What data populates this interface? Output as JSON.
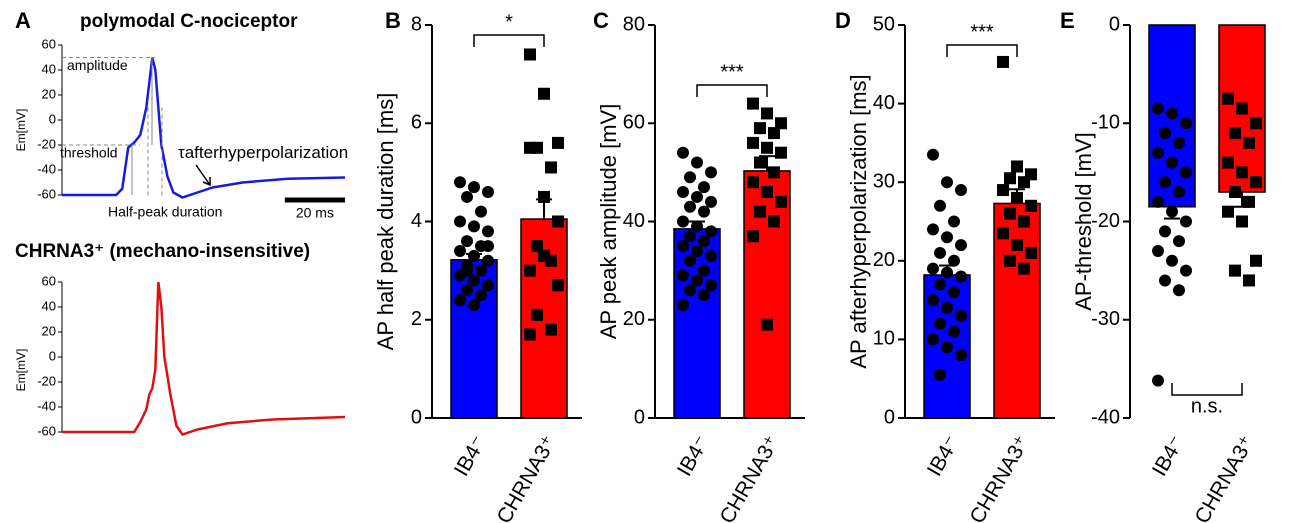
{
  "chart_data": [
    {
      "type": "line",
      "letter": "A",
      "title": "polymodal C-nociceptor",
      "ylabel": "Em[mV]",
      "xlim": [
        0,
        94
      ],
      "ylim": [
        -60,
        60
      ],
      "yticks": [
        -60,
        -40,
        -20,
        0,
        20,
        40,
        60
      ],
      "series": [
        {
          "name": "polymodal C-nociceptor",
          "color": "#1a1adc",
          "x": [
            0,
            18,
            20,
            22,
            24,
            26,
            28,
            30,
            31,
            32,
            33,
            35,
            37,
            40,
            45,
            50,
            60,
            75,
            94
          ],
          "values": [
            -60,
            -60,
            -55,
            -22,
            -18,
            -12,
            10,
            50,
            40,
            10,
            -20,
            -45,
            -58,
            -62,
            -58,
            -54,
            -50,
            -47,
            -46
          ]
        }
      ],
      "annotations": [
        "amplitude",
        "threshold",
        "τafterhyperpolarization",
        "Half-peak duration"
      ],
      "scalebar": {
        "value": 20,
        "label": "20 ms"
      }
    },
    {
      "type": "line",
      "title": "CHRNA3⁺ (mechano-insensitive)",
      "ylabel": "Em[mV]",
      "xlim": [
        0,
        94
      ],
      "ylim": [
        -60,
        60
      ],
      "yticks": [
        -60,
        -40,
        -20,
        0,
        20,
        40,
        60
      ],
      "series": [
        {
          "name": "CHRNA3⁺",
          "color": "#dd1111",
          "x": [
            0,
            24,
            26,
            28,
            29,
            30,
            31,
            32,
            33,
            34,
            36,
            38,
            40,
            45,
            55,
            70,
            94
          ],
          "values": [
            -60,
            -60,
            -52,
            -42,
            -30,
            -25,
            -10,
            60,
            40,
            0,
            -30,
            -55,
            -62,
            -58,
            -53,
            -50,
            -48
          ]
        }
      ]
    },
    {
      "type": "bar",
      "letter": "B",
      "ylabel": "AP half peak duration [ms]",
      "categories": [
        "IB4⁻",
        "CHRNA3⁺"
      ],
      "colors": [
        "#0000ff",
        "#ff0000"
      ],
      "values": [
        3.22,
        4.05
      ],
      "errors": [
        0.12,
        0.4
      ],
      "points": [
        [
          4.8,
          4.7,
          4.6,
          4.5,
          4.2,
          4.0,
          3.9,
          3.8,
          3.6,
          3.5,
          3.4,
          3.3,
          3.2,
          3.1,
          3.0,
          2.9,
          2.8,
          2.7,
          2.6,
          2.5,
          2.4,
          2.3,
          3.5,
          3.0
        ],
        [
          7.4,
          6.6,
          5.6,
          5.5,
          5.1,
          5.5,
          4.5,
          4.0,
          3.5,
          3.2,
          3.0,
          3.3,
          2.7,
          2.1,
          1.8,
          1.7
        ]
      ],
      "ylim": [
        0,
        8
      ],
      "yticks": [
        0,
        2,
        4,
        6,
        8
      ],
      "significance": "*"
    },
    {
      "type": "bar",
      "letter": "C",
      "ylabel": "AP peak amplitude [mV]",
      "categories": [
        "IB4⁻",
        "CHRNA3⁺"
      ],
      "colors": [
        "#0000ff",
        "#ff0000"
      ],
      "values": [
        38.5,
        50.3
      ],
      "errors": [
        1.5,
        3
      ],
      "points": [
        [
          54,
          52,
          50,
          49,
          47,
          46,
          45,
          44,
          43,
          42,
          40,
          39,
          38,
          37,
          36,
          35,
          34,
          33,
          32,
          30,
          29,
          28,
          27,
          26,
          25,
          23
        ],
        [
          64,
          62,
          60,
          59,
          58,
          56,
          55,
          54,
          52,
          50,
          48,
          46,
          44,
          42,
          40,
          37,
          19
        ]
      ],
      "ylim": [
        0,
        80
      ],
      "yticks": [
        0,
        20,
        40,
        60,
        80
      ],
      "significance": "***"
    },
    {
      "type": "bar",
      "letter": "D",
      "ylabel": "AP afterhyperpolarization [ms]",
      "categories": [
        "IB4⁻",
        "CHRNA3⁺"
      ],
      "colors": [
        "#0000ff",
        "#ff0000"
      ],
      "values": [
        18.2,
        27.3
      ],
      "errors": [
        1.2,
        1.8
      ],
      "points": [
        [
          33.5,
          30,
          29,
          27,
          25,
          24,
          23,
          22,
          21,
          20,
          19,
          18.5,
          18,
          17,
          16,
          15,
          14,
          13,
          12,
          11,
          10,
          9,
          8,
          5.5
        ],
        [
          45.3,
          32,
          31,
          30.5,
          30,
          29,
          28,
          27,
          26,
          25,
          23.5,
          22,
          21,
          20,
          19
        ]
      ],
      "ylim": [
        0,
        50
      ],
      "yticks": [
        0,
        10,
        20,
        30,
        40,
        50
      ],
      "significance": "***"
    },
    {
      "type": "bar",
      "letter": "E",
      "ylabel": "AP-threshold [mV]",
      "categories": [
        "IB4⁻",
        "CHRNA3⁺"
      ],
      "colors": [
        "#0000ff",
        "#ff0000"
      ],
      "values": [
        -18.5,
        -17
      ],
      "errors": [
        1.2,
        1.5
      ],
      "points": [
        [
          -8.5,
          -9,
          -10,
          -11,
          -12,
          -13,
          -14,
          -15,
          -16,
          -17,
          -18,
          -19,
          -20,
          -21,
          -22,
          -23,
          -24,
          -25,
          -26,
          -27,
          -36.2
        ],
        [
          -7.5,
          -8.5,
          -10,
          -11,
          -12,
          -14,
          -15,
          -16,
          -17,
          -18,
          -19,
          -20,
          -24,
          -25,
          -26
        ]
      ],
      "ylim": [
        -40,
        0
      ],
      "yticks": [
        -40,
        -30,
        -20,
        -10,
        0
      ],
      "significance": "n.s."
    }
  ]
}
